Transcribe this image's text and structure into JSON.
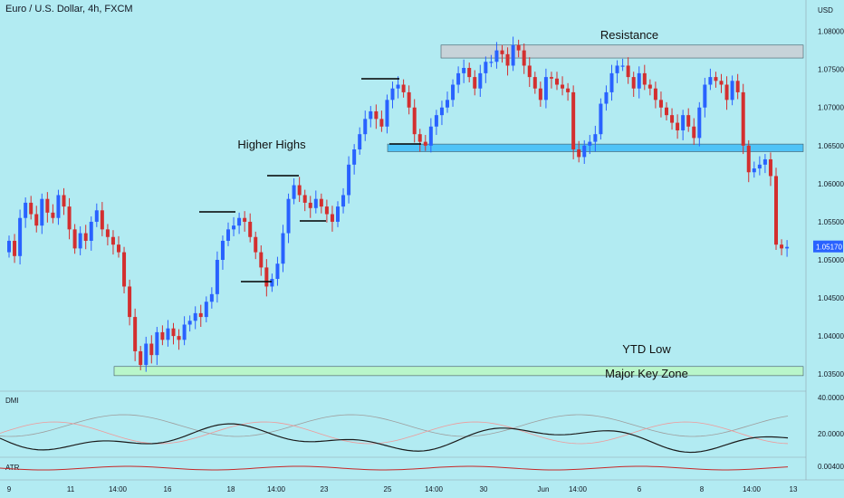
{
  "header": {
    "title": "Euro / U.S. Dollar, 4h, FXCM",
    "currency": "USD"
  },
  "price_axis": {
    "labels": [
      "1.08000",
      "1.07500",
      "1.07000",
      "1.06500",
      "1.06000",
      "1.05500",
      "1.05000",
      "1.04500",
      "1.04000",
      "1.03500"
    ],
    "current_price": "1.05170",
    "current_price_color": "#2962ff"
  },
  "time_axis": {
    "labels": [
      "9",
      "11",
      "14:00",
      "16",
      "18",
      "14:00",
      "23",
      "25",
      "14:00",
      "30",
      "Jun",
      "14:00",
      "6",
      "8",
      "14:00",
      "13"
    ]
  },
  "annotations": {
    "resistance": "Resistance",
    "higher_highs": "Higher Highs",
    "ytd_low": "YTD Low",
    "major_key_zone": "Major Key Zone"
  },
  "indicators": {
    "dmi": {
      "label": "DMI",
      "axis": [
        "40.0000",
        "20.0000"
      ]
    },
    "atr": {
      "label": "ATR",
      "axis": [
        "0.00400"
      ]
    }
  },
  "colors": {
    "up": "#2962ff",
    "down": "#d32f2f",
    "zone": "#4fc3f7",
    "resistance_zone": "#c7d3d9",
    "low_zone": "#b9f6ca",
    "background": "#b2ebf2"
  },
  "chart_data": {
    "type": "candlestick",
    "symbol": "EUR/USD",
    "timeframe": "4h",
    "ylim": [
      1.033,
      1.0815
    ],
    "zones": [
      {
        "label": "Resistance",
        "y_low": 1.0765,
        "y_high": 1.0782
      },
      {
        "label": "",
        "y_low": 1.0642,
        "y_high": 1.0652
      },
      {
        "label": "YTD Low",
        "y_low": 1.0348,
        "y_high": 1.036
      }
    ],
    "close_prices": [
      1.0525,
      1.0505,
      1.0555,
      1.0575,
      1.056,
      1.0545,
      1.058,
      1.0562,
      1.0555,
      1.0585,
      1.057,
      1.054,
      1.0515,
      1.0535,
      1.0525,
      1.055,
      1.0565,
      1.054,
      1.053,
      1.052,
      1.051,
      1.0465,
      1.0425,
      1.038,
      1.0362,
      1.039,
      1.0375,
      1.0405,
      1.0395,
      1.041,
      1.04,
      1.0395,
      1.0415,
      1.042,
      1.043,
      1.0425,
      1.0445,
      1.0455,
      1.05,
      1.0525,
      1.054,
      1.0545,
      1.0555,
      1.055,
      1.053,
      1.051,
      1.049,
      1.0465,
      1.0475,
      1.0495,
      1.0535,
      1.058,
      1.0598,
      1.0585,
      1.0575,
      1.0568,
      1.058,
      1.057,
      1.056,
      1.055,
      1.057,
      1.0585,
      1.0625,
      1.0645,
      1.0665,
      1.0685,
      1.0695,
      1.0685,
      1.0675,
      1.071,
      1.0725,
      1.073,
      1.072,
      1.07,
      1.0665,
      1.0655,
      1.065,
      1.0675,
      1.069,
      1.07,
      1.071,
      1.073,
      1.0745,
      1.0752,
      1.074,
      1.0725,
      1.0745,
      1.076,
      1.076,
      1.0775,
      1.077,
      1.0755,
      1.0782,
      1.0775,
      1.0755,
      1.074,
      1.0725,
      1.071,
      1.074,
      1.0738,
      1.073,
      1.0725,
      1.072,
      1.0645,
      1.0635,
      1.065,
      1.0655,
      1.0665,
      1.0705,
      1.072,
      1.0745,
      1.0755,
      1.0755,
      1.074,
      1.0725,
      1.0745,
      1.073,
      1.0725,
      1.071,
      1.07,
      1.069,
      1.068,
      1.067,
      1.069,
      1.0675,
      1.066,
      1.07,
      1.073,
      1.074,
      1.0735,
      1.073,
      1.071,
      1.0735,
      1.072,
      1.065,
      1.0615,
      1.062,
      1.0625,
      1.0632,
      1.061,
      1.052,
      1.0515,
      1.0517
    ]
  }
}
